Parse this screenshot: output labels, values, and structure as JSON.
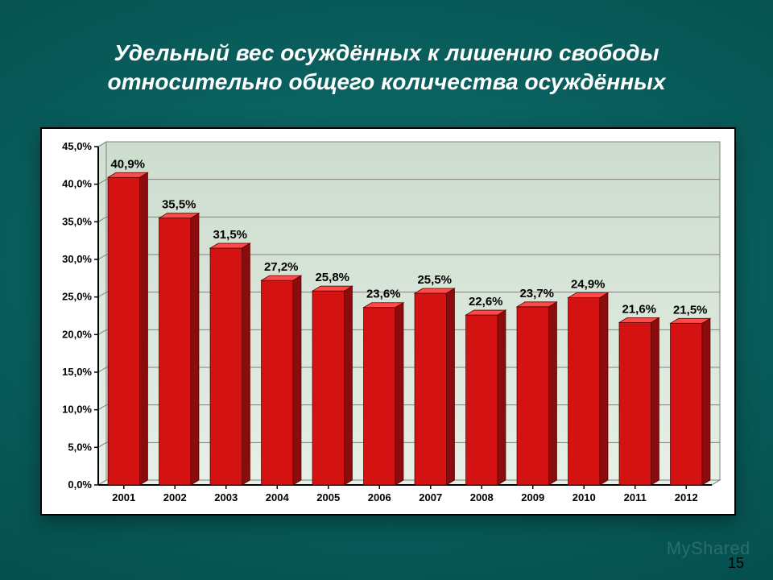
{
  "slide": {
    "title_line1": "Удельный вес осуждённых к лишению свободы",
    "title_line2": "относительно  общего количества осуждённых",
    "page_number": "15",
    "watermark": "MyShared"
  },
  "chart": {
    "type": "bar",
    "categories": [
      "2001",
      "2002",
      "2003",
      "2004",
      "2005",
      "2006",
      "2007",
      "2008",
      "2009",
      "2010",
      "2011",
      "2012"
    ],
    "values": [
      40.9,
      35.5,
      31.5,
      27.2,
      25.8,
      23.6,
      25.5,
      22.6,
      23.7,
      24.9,
      21.6,
      21.5
    ],
    "value_labels": [
      "40,9%",
      "35,5%",
      "31,5%",
      "27,2%",
      "25,8%",
      "23,6%",
      "25,5%",
      "22,6%",
      "23,7%",
      "24,9%",
      "21,6%",
      "21,5%"
    ],
    "ylim": [
      0,
      45
    ],
    "ytick_step": 5,
    "ytick_labels": [
      "0,0%",
      "5,0%",
      "10,0%",
      "15,0%",
      "20,0%",
      "25,0%",
      "30,0%",
      "35,0%",
      "40,0%",
      "45,0%"
    ],
    "plot_bg_top": "#ccdccd",
    "plot_bg_bottom": "#e6f0e6",
    "grid_color": "#808080",
    "axis_color": "#000000",
    "bar_face_color": "#d41212",
    "bar_side_color": "#8a0c0c",
    "bar_top_color": "#ff4a4a",
    "label_font_size": 13,
    "axis_font_size": 13,
    "value_font_size": 15,
    "bar_width_ratio": 0.62,
    "depth_x": 10,
    "depth_y": 6,
    "frame_bg": "#ffffff"
  }
}
